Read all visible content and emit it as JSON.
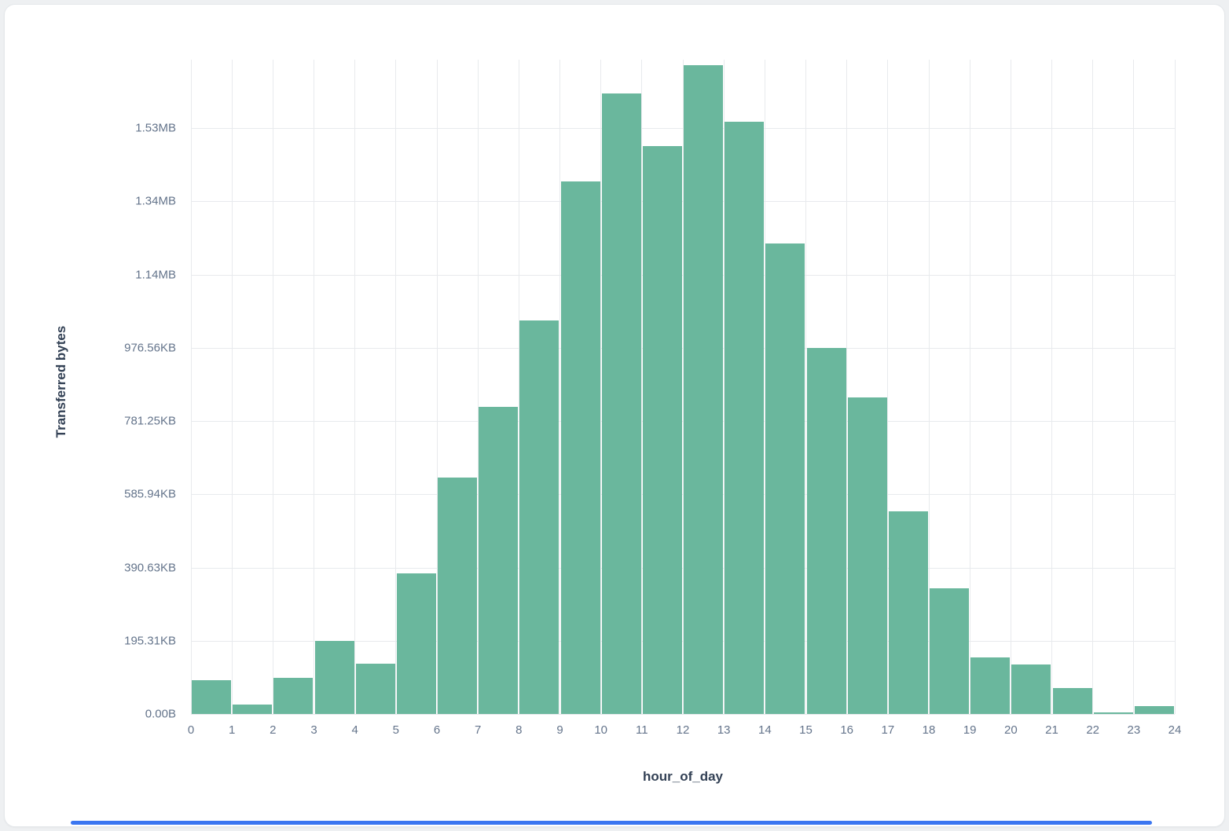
{
  "page": {
    "background": "#eef0f2",
    "card_background": "#ffffff"
  },
  "scrollbar": {
    "color": "#3b76f0"
  },
  "chart_data": {
    "type": "bar",
    "title": "",
    "xlabel": "hour_of_day",
    "ylabel": "Transferred bytes",
    "value_unit": "KiB",
    "grid": true,
    "legend": "none",
    "bar_color": "#6ab79d",
    "gridline_color": "#e8eaed",
    "tick_label_color": "#64748b",
    "axis_title_color": "#334155",
    "ylim_kb": [
      0,
      1745
    ],
    "y_ticks": [
      {
        "label": "0.00B",
        "kb": 0
      },
      {
        "label": "195.31KB",
        "kb": 195.31
      },
      {
        "label": "390.63KB",
        "kb": 390.63
      },
      {
        "label": "585.94KB",
        "kb": 585.94
      },
      {
        "label": "781.25KB",
        "kb": 781.25
      },
      {
        "label": "976.56KB",
        "kb": 976.56
      },
      {
        "label": "1.14MB",
        "kb": 1171.88
      },
      {
        "label": "1.34MB",
        "kb": 1367.19
      },
      {
        "label": "1.53MB",
        "kb": 1562.5
      }
    ],
    "x_ticks": [
      "0",
      "1",
      "2",
      "3",
      "4",
      "5",
      "6",
      "7",
      "8",
      "9",
      "10",
      "11",
      "12",
      "13",
      "14",
      "15",
      "16",
      "17",
      "18",
      "19",
      "20",
      "21",
      "22",
      "23",
      "24"
    ],
    "categories": [
      "0-1",
      "1-2",
      "2-3",
      "3-4",
      "4-5",
      "5-6",
      "6-7",
      "7-8",
      "8-9",
      "9-10",
      "10-11",
      "11-12",
      "12-13",
      "13-14",
      "14-15",
      "15-16",
      "16-17",
      "17-18",
      "18-19",
      "19-20",
      "20-21",
      "21-22",
      "22-23",
      "23-24"
    ],
    "values_kb": [
      90,
      25,
      97,
      195,
      135,
      375,
      630,
      820,
      1050,
      1420,
      1655,
      1515,
      1730,
      1580,
      1255,
      976,
      845,
      540,
      335,
      150,
      132,
      70,
      4,
      22
    ]
  }
}
